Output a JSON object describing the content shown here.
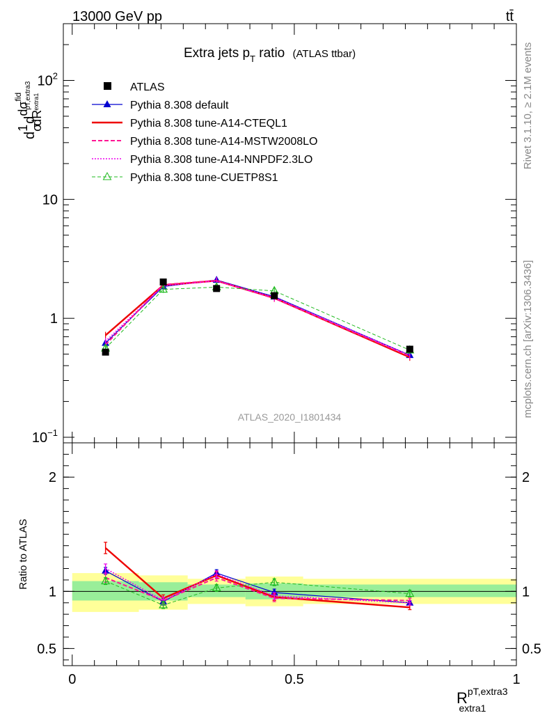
{
  "header": {
    "left": "13000 GeV pp",
    "right": "tt̄"
  },
  "side_labels": {
    "rivet": "Rivet 3.1.10, ≥ 2.1M events",
    "mcplots": "mcplots.cern.ch [arXiv:1306.3436]"
  },
  "chart_data": {
    "type": "line",
    "title_main": "Extra jets p",
    "title_sub": "T",
    "title_tail": " ratio",
    "title_note": "(ATLAS ttbar)",
    "watermark": "ATLAS_2020_I1801434",
    "ylabel": "1/σ dσ^fid/dR^{pT,extra3}_{extra1}",
    "ylabel_parts": {
      "a": "d",
      "b": "1",
      "c": "σ",
      "d": "d",
      "e": "dσ",
      "f": "fid",
      "g": "dR",
      "h": "pT,extra3",
      "i": "extra1"
    },
    "xlabel_main": "R",
    "xlabel_sup": "pT,extra3",
    "xlabel_sub": "extra1",
    "ratio_ylabel": "Ratio to ATLAS",
    "xlim": [
      -0.02,
      1.0
    ],
    "ylim_log": [
      0.1,
      300
    ],
    "ratio_ylim": [
      0.35,
      2.3
    ],
    "x_ticks": [
      0,
      0.5,
      1
    ],
    "x_tick_labels": [
      "0",
      "0.5",
      "1"
    ],
    "y_ticks": [
      {
        "value": 100,
        "base": "10",
        "exp": "2"
      },
      {
        "value": 10,
        "base": "10",
        "exp": ""
      },
      {
        "value": 1,
        "base": "1",
        "exp": ""
      },
      {
        "value": 0.1,
        "base": "10",
        "exp": "−1"
      }
    ],
    "ratio_ticks": [
      {
        "value": 2,
        "label": "2"
      },
      {
        "value": 1,
        "label": "1"
      },
      {
        "value": 0.5,
        "label": "0.5"
      }
    ],
    "bins": [
      0,
      0.15,
      0.26,
      0.39,
      0.52,
      1.0
    ],
    "x": [
      0.075,
      0.205,
      0.325,
      0.455,
      0.76
    ],
    "data": {
      "name": "ATLAS",
      "values": [
        0.52,
        2.02,
        1.78,
        1.55,
        0.55
      ],
      "color": "#000000"
    },
    "band_stat": [
      {
        "lo": 0.92,
        "hi": 1.09
      },
      {
        "lo": 0.92,
        "hi": 1.08
      },
      {
        "lo": 0.95,
        "hi": 1.06
      },
      {
        "lo": 0.93,
        "hi": 1.07
      },
      {
        "lo": 0.95,
        "hi": 1.06
      }
    ],
    "band_total": [
      {
        "lo": 0.82,
        "hi": 1.16
      },
      {
        "lo": 0.84,
        "hi": 1.14
      },
      {
        "lo": 0.89,
        "hi": 1.11
      },
      {
        "lo": 0.87,
        "hi": 1.13
      },
      {
        "lo": 0.89,
        "hi": 1.11
      }
    ],
    "series": [
      {
        "name": "Pythia 8.308 default",
        "color": "#0000d0",
        "dash": "",
        "marker": "triangle-filled",
        "values": [
          0.62,
          1.85,
          2.1,
          1.52,
          0.49
        ],
        "ratio": [
          1.18,
          0.91,
          1.16,
          0.99,
          0.9
        ],
        "ratio_err": [
          0.03,
          0.03,
          0.03,
          0.03,
          0.02
        ],
        "width": 1.2
      },
      {
        "name": "Pythia 8.308 tune-A14-CTEQL1",
        "color": "#ee0000",
        "dash": "",
        "marker": "none",
        "values": [
          0.72,
          1.9,
          2.07,
          1.48,
          0.47
        ],
        "ratio": [
          1.38,
          0.94,
          1.14,
          0.95,
          0.86
        ],
        "ratio_err": [
          0.05,
          0.03,
          0.03,
          0.03,
          0.02
        ],
        "width": 2.4
      },
      {
        "name": "Pythia 8.308 tune-A14-MSTW2008LO",
        "color": "#ff1493",
        "dash": "6,3",
        "marker": "none",
        "values": [
          0.6,
          1.92,
          2.08,
          1.47,
          0.48
        ],
        "ratio": [
          1.12,
          0.92,
          1.12,
          0.94,
          0.92
        ],
        "ratio_err": [
          0.04,
          0.03,
          0.03,
          0.03,
          0.02
        ],
        "width": 2.0
      },
      {
        "name": "Pythia 8.308 tune-A14-NNPDF2.3LO",
        "color": "#ee00ee",
        "dash": "2,2",
        "marker": "none",
        "values": [
          0.64,
          1.88,
          2.06,
          1.5,
          0.49
        ],
        "ratio": [
          1.2,
          0.92,
          1.15,
          0.96,
          0.9
        ],
        "ratio_err": [
          0.04,
          0.03,
          0.03,
          0.03,
          0.02
        ],
        "width": 1.6
      },
      {
        "name": "Pythia 8.308 tune-CUETP8S1",
        "color": "#22bb22",
        "dash": "5,3",
        "marker": "triangle-open",
        "values": [
          0.56,
          1.75,
          1.83,
          1.7,
          0.54
        ],
        "ratio": [
          1.09,
          0.88,
          1.03,
          1.08,
          0.98
        ],
        "ratio_err": [
          0.03,
          0.03,
          0.03,
          0.03,
          0.03
        ],
        "width": 1.0
      }
    ]
  }
}
